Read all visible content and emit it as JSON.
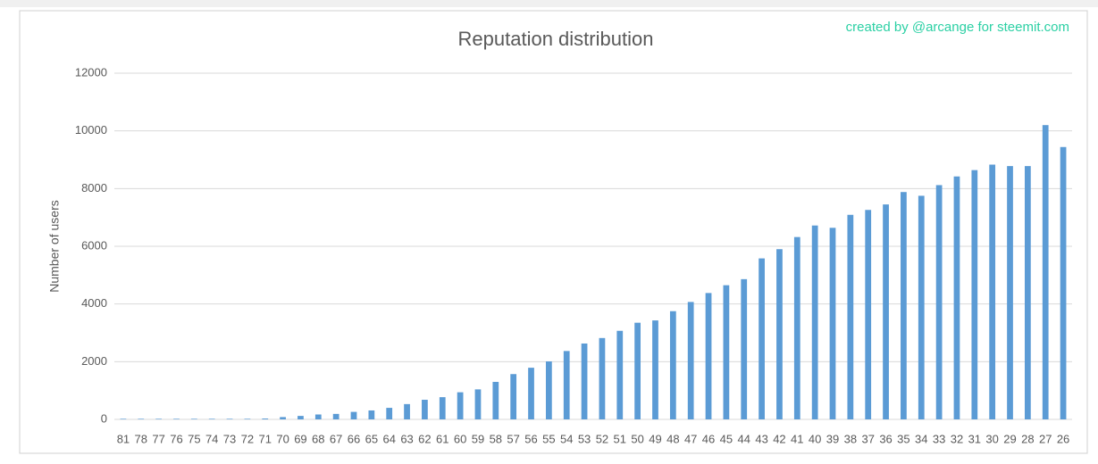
{
  "chart_data": {
    "type": "bar",
    "title": "Reputation distribution",
    "annotation": "created by @arcange for steemit.com",
    "y_label": "Number of users",
    "categories": [
      "81",
      "78",
      "77",
      "76",
      "75",
      "74",
      "73",
      "72",
      "71",
      "70",
      "69",
      "68",
      "67",
      "66",
      "65",
      "64",
      "63",
      "62",
      "61",
      "60",
      "59",
      "58",
      "57",
      "56",
      "55",
      "54",
      "53",
      "52",
      "51",
      "50",
      "49",
      "48",
      "47",
      "46",
      "45",
      "44",
      "43",
      "42",
      "41",
      "40",
      "39",
      "38",
      "37",
      "36",
      "35",
      "34",
      "33",
      "32",
      "31",
      "30",
      "29",
      "28",
      "27",
      "26"
    ],
    "values": [
      20,
      20,
      20,
      20,
      20,
      20,
      20,
      20,
      30,
      80,
      120,
      170,
      190,
      260,
      310,
      400,
      530,
      680,
      770,
      940,
      1040,
      1300,
      1570,
      1790,
      2010,
      2370,
      2630,
      2820,
      3070,
      3350,
      3430,
      3750,
      4070,
      4380,
      4650,
      4860,
      5580,
      5900,
      6320,
      6720,
      6640,
      7090,
      7260,
      7450,
      7880,
      7750,
      8120,
      8420,
      8640,
      8830,
      8780,
      8780,
      10200,
      9440
    ],
    "color": "#5b9bd5",
    "ylim": [
      0,
      12000
    ],
    "yticks": [
      0,
      2000,
      4000,
      6000,
      8000,
      10000,
      12000
    ],
    "grid": true
  }
}
